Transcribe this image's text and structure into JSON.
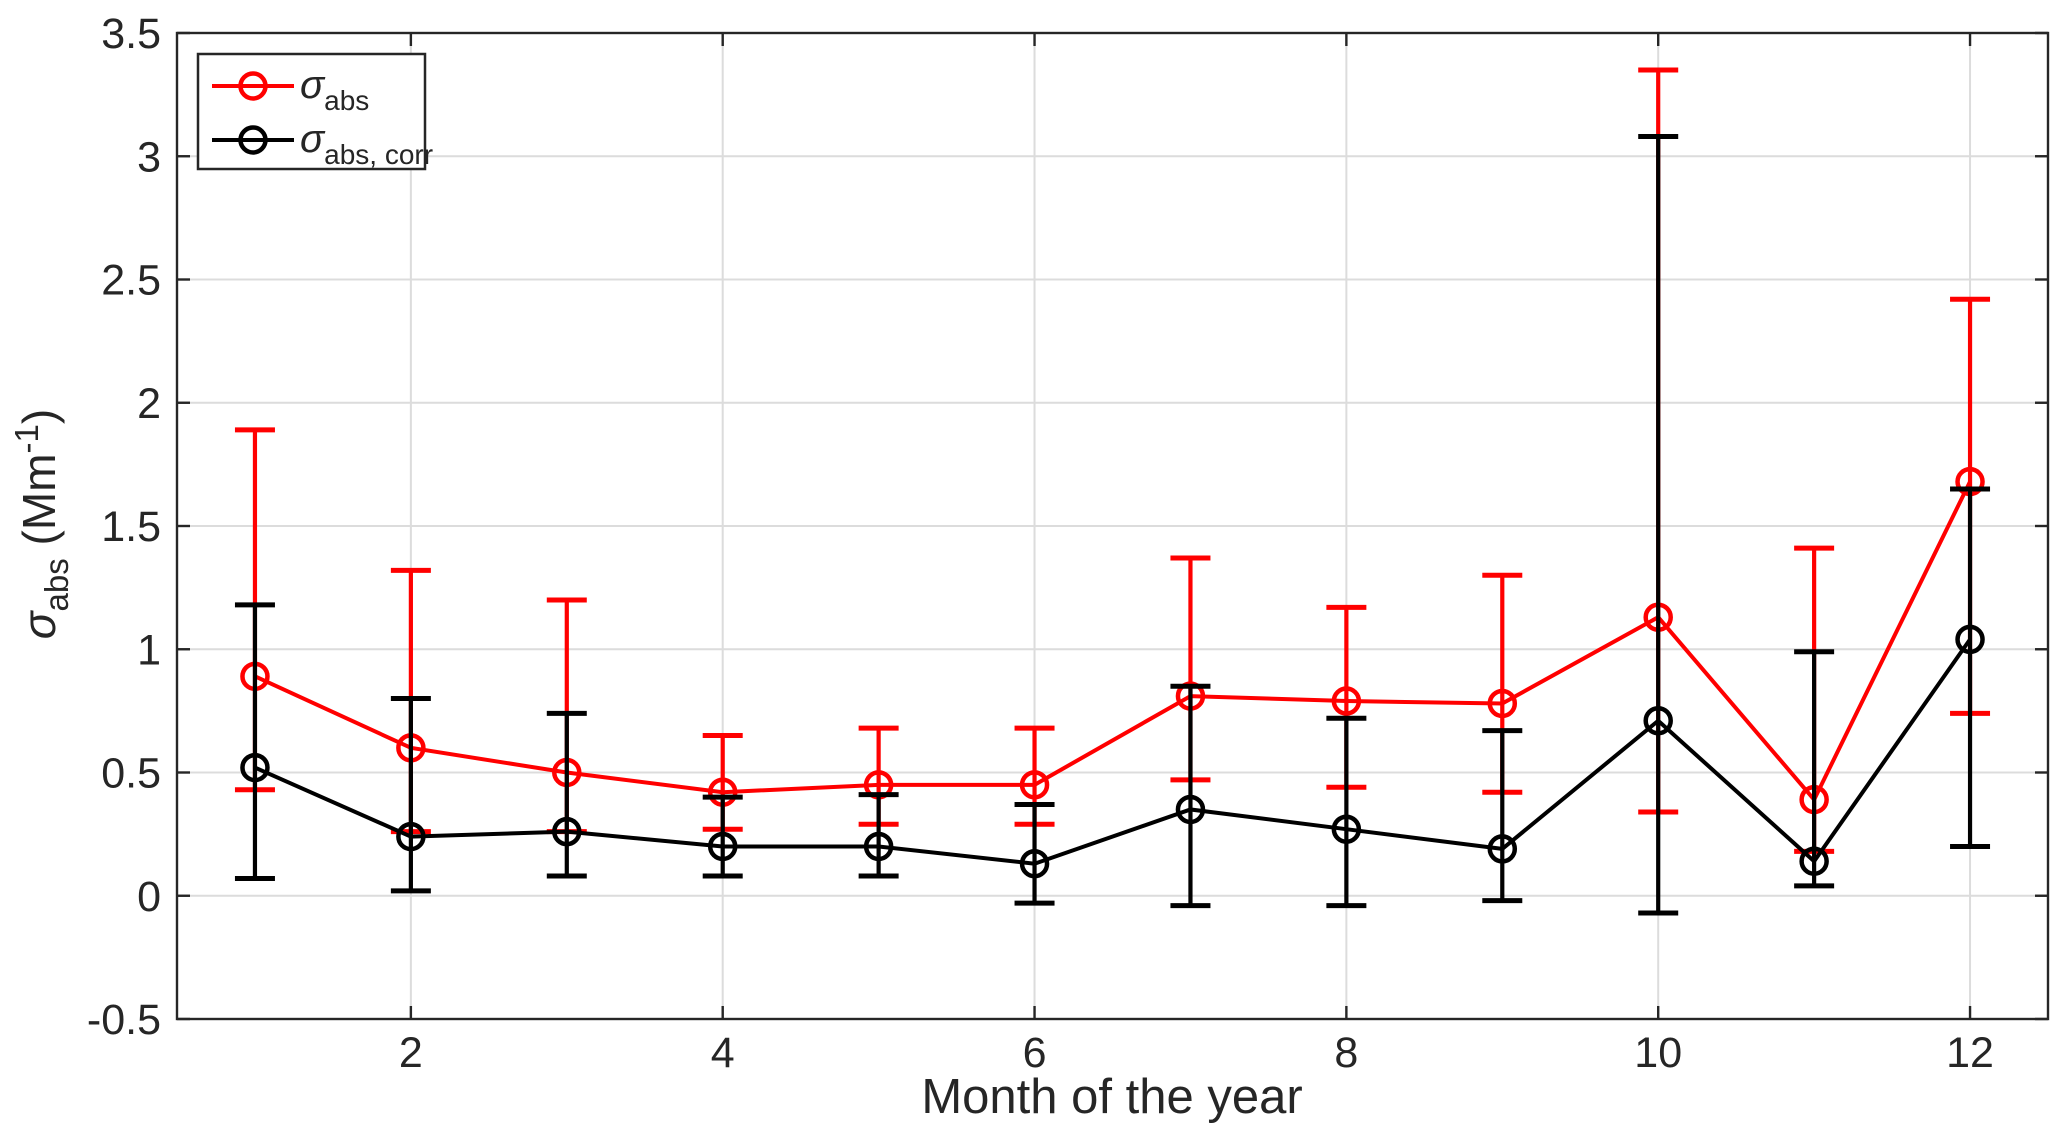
{
  "chart_data": {
    "type": "line",
    "title": "",
    "xlabel": "Month of the year",
    "ylabel": "σ_abs (Mm⁻¹)",
    "ylabel_parts": {
      "symbol": "σ",
      "subscript": "abs",
      "units_prefix": " (Mm",
      "units_superscript": "-1",
      "units_suffix": ")"
    },
    "xlim": [
      0.5,
      12.5
    ],
    "ylim": [
      -0.5,
      3.5
    ],
    "x_ticks": [
      2,
      4,
      6,
      8,
      10,
      12
    ],
    "y_ticks": [
      -0.5,
      0,
      0.5,
      1,
      1.5,
      2,
      2.5,
      3,
      3.5
    ],
    "grid": true,
    "legend_position": "top-left",
    "x": [
      1,
      2,
      3,
      4,
      5,
      6,
      7,
      8,
      9,
      10,
      11,
      12
    ],
    "series": [
      {
        "name": "sigma_abs",
        "legend_symbol": "σ",
        "legend_subscript": "abs",
        "color": "#ff0000",
        "marker": "open-circle",
        "values": [
          0.89,
          0.6,
          0.5,
          0.42,
          0.45,
          0.45,
          0.81,
          0.79,
          0.78,
          1.13,
          0.39,
          1.68
        ],
        "err_low": [
          0.43,
          0.26,
          0.26,
          0.27,
          0.29,
          0.29,
          0.47,
          0.44,
          0.42,
          0.34,
          0.18,
          0.74
        ],
        "err_high": [
          1.89,
          1.32,
          1.2,
          0.65,
          0.68,
          0.68,
          1.37,
          1.17,
          1.3,
          3.35,
          1.41,
          2.42
        ]
      },
      {
        "name": "sigma_abs_corr",
        "legend_symbol": "σ",
        "legend_subscript": "abs, corr",
        "color": "#000000",
        "marker": "open-circle",
        "values": [
          0.52,
          0.24,
          0.26,
          0.2,
          0.2,
          0.13,
          0.35,
          0.27,
          0.19,
          0.71,
          0.14,
          1.04
        ],
        "err_low": [
          0.07,
          0.02,
          0.08,
          0.08,
          0.08,
          -0.03,
          -0.04,
          -0.04,
          -0.02,
          -0.07,
          0.04,
          0.2
        ],
        "err_high": [
          1.18,
          0.8,
          0.74,
          0.4,
          0.41,
          0.37,
          0.85,
          0.72,
          0.67,
          3.08,
          0.99,
          1.65
        ]
      }
    ],
    "colors": {
      "background": "#ffffff",
      "axis": "#262626",
      "grid": "#dcdcdc",
      "legend_border": "#262626",
      "series_abs": "#ff0000",
      "series_abs_corr": "#000000"
    }
  }
}
